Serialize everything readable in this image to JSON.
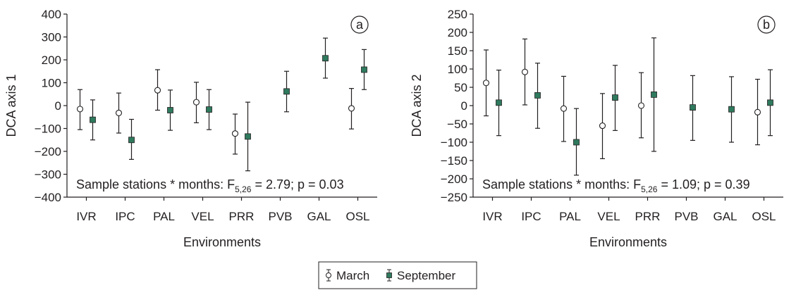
{
  "chart_data": [
    {
      "type": "scatter",
      "panel_label": "a",
      "ylabel": "DCA axis 1",
      "xlabel": "Environments",
      "categories": [
        "IVR",
        "IPC",
        "PAL",
        "VEL",
        "PRR",
        "PVB",
        "GAL",
        "OSL"
      ],
      "ylim": [
        -400,
        400
      ],
      "yticks": [
        "400",
        "300",
        "200",
        "100",
        "0",
        "−100",
        "−200",
        "−300",
        "−400"
      ],
      "grid": false,
      "annotation": {
        "prefix": "Sample stations * months: F",
        "subscript": "5,26",
        "suffix": " = 2.79; p = 0.03"
      },
      "series": [
        {
          "name": "March",
          "marker": "open-circle",
          "points": [
            {
              "x": "IVR",
              "y": -15,
              "low": -105,
              "high": 70
            },
            {
              "x": "IPC",
              "y": -32,
              "low": -120,
              "high": 55
            },
            {
              "x": "PAL",
              "y": 67,
              "low": -20,
              "high": 157
            },
            {
              "x": "VEL",
              "y": 15,
              "low": -75,
              "high": 102
            },
            {
              "x": "PRR",
              "y": -122,
              "low": -212,
              "high": -37
            },
            {
              "x": "OSL",
              "y": -12,
              "low": -102,
              "high": 75
            }
          ]
        },
        {
          "name": "September",
          "marker": "filled-square",
          "points": [
            {
              "x": "IVR",
              "y": -62,
              "low": -150,
              "high": 25
            },
            {
              "x": "IPC",
              "y": -150,
              "low": -235,
              "high": -60
            },
            {
              "x": "PAL",
              "y": -20,
              "low": -108,
              "high": 68
            },
            {
              "x": "VEL",
              "y": -17,
              "low": -105,
              "high": 70
            },
            {
              "x": "PRR",
              "y": -135,
              "low": -285,
              "high": 15
            },
            {
              "x": "PVB",
              "y": 62,
              "low": -27,
              "high": 150
            },
            {
              "x": "GAL",
              "y": 207,
              "low": 120,
              "high": 295
            },
            {
              "x": "OSL",
              "y": 157,
              "low": 70,
              "high": 245
            }
          ]
        }
      ]
    },
    {
      "type": "scatter",
      "panel_label": "b",
      "ylabel": "DCA axis 2",
      "xlabel": "Environments",
      "categories": [
        "IVR",
        "IPC",
        "PAL",
        "VEL",
        "PRR",
        "PVB",
        "GAL",
        "OSL"
      ],
      "ylim": [
        -250,
        250
      ],
      "yticks": [
        "250",
        "200",
        "150",
        "100",
        "50",
        "0",
        "−50",
        "−100",
        "−150",
        "−200",
        "−250"
      ],
      "grid": false,
      "annotation": {
        "prefix": "Sample stations * months: F",
        "subscript": "5,26",
        "suffix": " = 1.09; p = 0.39"
      },
      "series": [
        {
          "name": "March",
          "marker": "open-circle",
          "points": [
            {
              "x": "IVR",
              "y": 62,
              "low": -28,
              "high": 152
            },
            {
              "x": "IPC",
              "y": 92,
              "low": 2,
              "high": 182
            },
            {
              "x": "PAL",
              "y": -8,
              "low": -98,
              "high": 80
            },
            {
              "x": "VEL",
              "y": -55,
              "low": -145,
              "high": 33
            },
            {
              "x": "PRR",
              "y": 0,
              "low": -88,
              "high": 90
            },
            {
              "x": "OSL",
              "y": -18,
              "low": -107,
              "high": 72
            }
          ]
        },
        {
          "name": "September",
          "marker": "filled-square",
          "points": [
            {
              "x": "IVR",
              "y": 8,
              "low": -82,
              "high": 97
            },
            {
              "x": "IPC",
              "y": 28,
              "low": -62,
              "high": 116
            },
            {
              "x": "PAL",
              "y": -100,
              "low": -190,
              "high": -8
            },
            {
              "x": "VEL",
              "y": 22,
              "low": -68,
              "high": 110
            },
            {
              "x": "PRR",
              "y": 30,
              "low": -125,
              "high": 185
            },
            {
              "x": "PVB",
              "y": -5,
              "low": -95,
              "high": 82
            },
            {
              "x": "GAL",
              "y": -10,
              "low": -100,
              "high": 79
            },
            {
              "x": "OSL",
              "y": 8,
              "low": -82,
              "high": 98
            }
          ]
        }
      ]
    }
  ],
  "legend": {
    "placement": "bottom-center",
    "items": [
      {
        "label": "March",
        "marker": "open-circle"
      },
      {
        "label": "September",
        "marker": "filled-square"
      }
    ]
  },
  "colors": {
    "axis": "#231f20",
    "september_fill": "#2f7a5e",
    "march_fill": "#ffffff"
  }
}
